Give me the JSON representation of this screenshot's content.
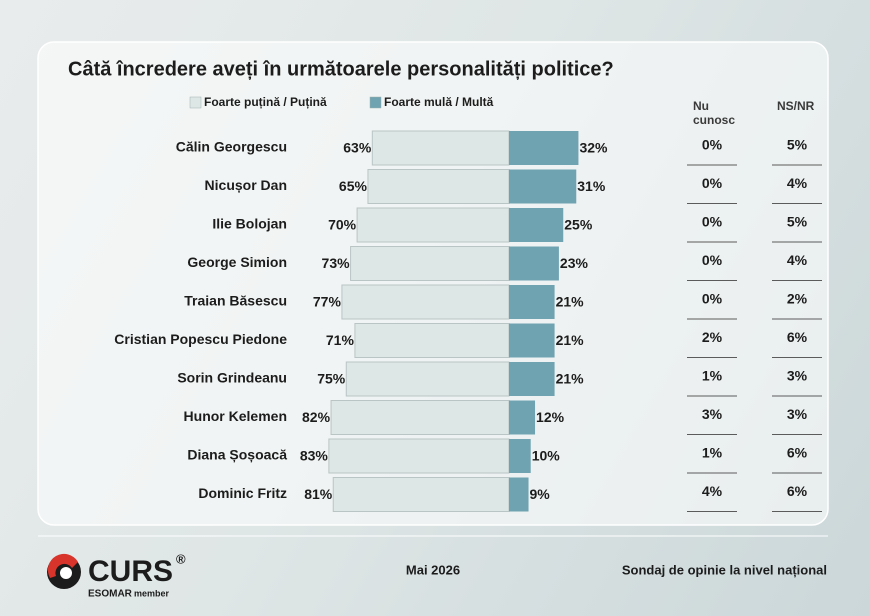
{
  "chart_data": {
    "type": "diverging-bar",
    "title": "Câtă încredere aveți în următoarele personalități politice?",
    "categories": [
      "Călin Georgescu",
      "Nicușor Dan",
      "Ilie Bolojan",
      "George Simion",
      "Traian Băsescu",
      "Cristian Popescu Piedone",
      "Sorin Grindeanu",
      "Hunor Kelemen",
      "Diana Șoșoacă",
      "Dominic Fritz"
    ],
    "series": [
      {
        "name": "Foarte puțină / Puțină",
        "color": "#dde7e6",
        "values": [
          63,
          65,
          70,
          73,
          77,
          71,
          75,
          82,
          83,
          81
        ],
        "value_labels": [
          "63%",
          "65%",
          "70%",
          "73%",
          "77%",
          "71%",
          "75%",
          "82%",
          "83%",
          "81%"
        ]
      },
      {
        "name": "Foarte mulă / Multă",
        "color": "#6fa3b1",
        "values": [
          32,
          31,
          25,
          23,
          21,
          21,
          21,
          12,
          10,
          9
        ],
        "value_labels": [
          "32%",
          "31%",
          "25%",
          "23%",
          "21%",
          "21%",
          "21%",
          "12%",
          "10%",
          "9%"
        ]
      }
    ],
    "columns": [
      {
        "name": "Nu cunosc",
        "values": [
          0,
          0,
          0,
          0,
          0,
          2,
          1,
          3,
          1,
          4
        ],
        "value_labels": [
          "0%",
          "0%",
          "0%",
          "0%",
          "0%",
          "2%",
          "1%",
          "3%",
          "1%",
          "4%"
        ]
      },
      {
        "name": "NS/NR",
        "values": [
          5,
          4,
          5,
          4,
          2,
          6,
          3,
          3,
          6,
          6
        ],
        "value_labels": [
          "5%",
          "4%",
          "5%",
          "4%",
          "2%",
          "6%",
          "3%",
          "3%",
          "6%",
          "6%"
        ]
      }
    ]
  },
  "footer": {
    "logo": "CURS",
    "registered": "®",
    "esomar": "ESOMAR",
    "member": "member",
    "date": "Mai 2026",
    "note": "Sondaj de opinie la nivel național"
  }
}
